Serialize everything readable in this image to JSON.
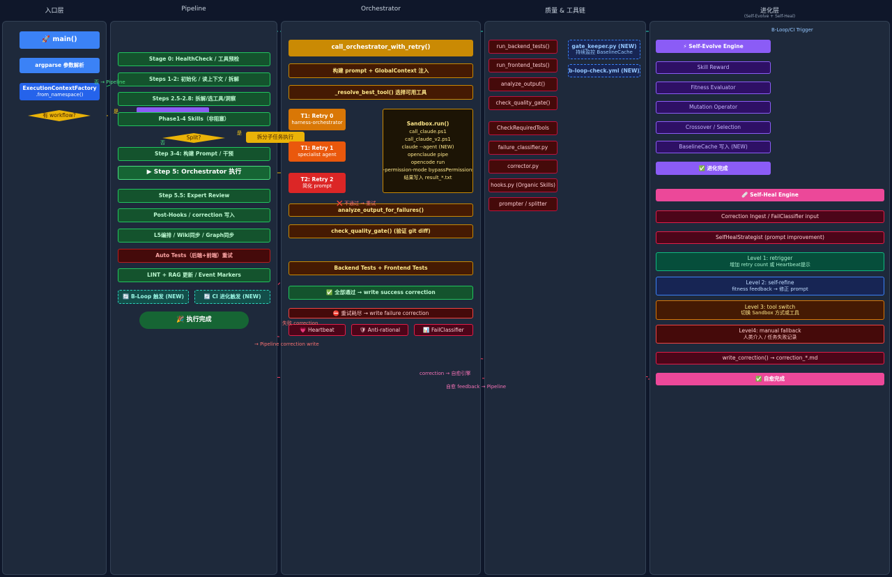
{
  "lanes": [
    {
      "title": "入口层",
      "nodes": [
        {
          "label": "🚀 main()"
        },
        {
          "label": "argparse 参数解析"
        },
        {
          "label": "ExecutionContextFactory",
          "sub": ".from_namespace()"
        },
        {
          "label": "有 workflow?"
        }
      ],
      "edge_labels": [
        "否 → Pipeline",
        "是"
      ]
    },
    {
      "title": "Pipeline",
      "nodes": [
        {
          "label": "Stage 0: HealthCheck / 工具预检"
        },
        {
          "label": "Steps 1-2: 初始化 / 读上下文 / 拆解"
        },
        {
          "label": "Steps 2.5-2.8: 拆解/选工具/洞察"
        },
        {
          "label": "Phase1-4 Skills（非阻塞）"
        },
        {
          "label": "Split?"
        },
        {
          "label": "拆分子任务执行"
        },
        {
          "label": "Step 3-4: 构建 Prompt / 干预"
        },
        {
          "label": "▶ Step 5: Orchestrator 执行"
        },
        {
          "label": "Step 5.5: Expert Review"
        },
        {
          "label": "Post-Hooks / correction 写入"
        },
        {
          "label": "L5编排 / Wiki同步 / Graph同步"
        },
        {
          "label": "Auto Tests（后端+前端）重试"
        },
        {
          "label": "LINT + RAG 更新 / Event Markers"
        },
        {
          "label": "🔄 B-Loop 触发 (NEW)"
        },
        {
          "label": "🔄 CI 进化触发 (NEW)"
        },
        {
          "label": "🎉 执行完成"
        }
      ],
      "edge_labels": [
        "是",
        "否"
      ]
    },
    {
      "title": "Orchestrator",
      "nodes": [
        {
          "label": "call_orchestrator_with_retry()"
        },
        {
          "label": "构建 prompt + GlobalContext 注入"
        },
        {
          "label": "_resolve_best_tool() 选择可用工具"
        },
        {
          "label": "T1: Retry 0",
          "sub": "harness-orchestrator"
        },
        {
          "label": "T1: Retry 1",
          "sub": "specialist agent"
        },
        {
          "label": "T2: Retry 2",
          "sub": "简化 prompt"
        },
        {
          "label": "Sandbox.run()",
          "lines": [
            "call_claude.ps1",
            "call_claude_v2.ps1",
            "claude --agent (NEW)",
            "openclaude pipe",
            "opencode run",
            "--permission-mode bypassPermissions",
            "结果写入 result_*.txt"
          ]
        },
        {
          "label": "analyze_output_for_failures()"
        },
        {
          "label": "check_quality_gate() (验证 git diff)"
        },
        {
          "label": "Backend Tests + Frontend Tests"
        },
        {
          "label": "✅ 全部通过 → write success correction"
        },
        {
          "label": "⛔ 重试耗尽 → write failure correction"
        },
        {
          "label": "💗 Heartbeat"
        },
        {
          "label": "🛡 Anti-rational"
        },
        {
          "label": "📊 FailClassifier"
        }
      ],
      "edge_labels": [
        "❌ 不通过 → 重试",
        "失败 correction",
        "→ Pipeline correction write",
        "correction → 自愈引擎",
        "自愈 feedback → Pipeline"
      ]
    },
    {
      "title": "质量 & 工具链",
      "nodes": [
        {
          "label": "run_backend_tests()"
        },
        {
          "label": "run_frontend_tests()"
        },
        {
          "label": "analyze_output()"
        },
        {
          "label": "check_quality_gate()"
        },
        {
          "label": "CheckRequiredTools"
        },
        {
          "label": "failure_classifier.py"
        },
        {
          "label": "corrector.py"
        },
        {
          "label": "hooks.py (Organic Skills)"
        },
        {
          "label": "prompter / splitter"
        },
        {
          "label": "gate_keeper.py (NEW)",
          "sub": "持续监控 BaselineCache"
        },
        {
          "label": "b-loop-check.yml (NEW)"
        }
      ],
      "edge_labels": []
    },
    {
      "title": "进化层",
      "subtitle": "(Self-Evolve + Self-Heal)",
      "nodes": [
        {
          "label": "⚡ Self-Evolve Engine"
        },
        {
          "label": "Skill Reward"
        },
        {
          "label": "Fitness Evaluator"
        },
        {
          "label": "Mutation Operator"
        },
        {
          "label": "Crossover / Selection"
        },
        {
          "label": "BaselineCache 写入 (NEW)"
        },
        {
          "label": "✅ 进化完成"
        },
        {
          "label": "🩹 Self-Heal Engine"
        },
        {
          "label": "Correction Ingest / FailClassifier input"
        },
        {
          "label": "SelfHealStrategist (prompt improvement)"
        },
        {
          "label": "Level 1: retrigger",
          "sub": "增加 retry count 或 Heartbeat提示"
        },
        {
          "label": "Level 2: self-refine",
          "sub": "fitness feedback → 修正 prompt"
        },
        {
          "label": "Level 3: tool switch",
          "sub": "切换 Sandbox 方式或工具"
        },
        {
          "label": "Level4: manual fallback",
          "sub": "人类介入 / 任务失败记录"
        },
        {
          "label": "write_correction() → correction_*.md"
        },
        {
          "label": "✅ 自愈完成"
        }
      ],
      "edge_labels": [
        "B-Loop/CI Trigger"
      ]
    }
  ]
}
